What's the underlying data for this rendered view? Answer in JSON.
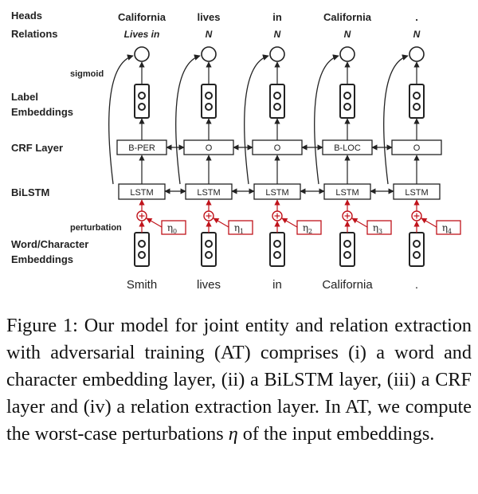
{
  "rows": {
    "heads": "Heads",
    "relations": "Relations",
    "sigmoid": "sigmoid",
    "label_embeddings": [
      "Label",
      "Embeddings"
    ],
    "crf": "CRF Layer",
    "bilstm": "BiLSTM",
    "perturbation": "perturbation",
    "word_char": [
      "Word/Character",
      "Embeddings"
    ]
  },
  "columns": [
    {
      "word": "Smith",
      "head": "California",
      "relation": "Lives in",
      "crf": "B-PER",
      "lstm": "LSTM",
      "eta": "η",
      "eta_sub": "0"
    },
    {
      "word": "lives",
      "head": "lives",
      "relation": "N",
      "crf": "O",
      "lstm": "LSTM",
      "eta": "η",
      "eta_sub": "1"
    },
    {
      "word": "in",
      "head": "in",
      "relation": "N",
      "crf": "O",
      "lstm": "LSTM",
      "eta": "η",
      "eta_sub": "2"
    },
    {
      "word": "California",
      "head": "California",
      "relation": "N",
      "crf": "B-LOC",
      "lstm": "LSTM",
      "eta": "η",
      "eta_sub": "3"
    },
    {
      "word": ".",
      "head": ".",
      "relation": "N",
      "crf": "O",
      "lstm": "LSTM",
      "eta": "η",
      "eta_sub": "4"
    }
  ],
  "caption": {
    "label": "Figure 1:",
    "text": "Our model for joint entity and relation extraction with adversarial training (AT) comprises (i) a word and character embedding layer, (ii) a BiLSTM layer, (iii) a CRF layer and (iv) a relation extraction layer. In AT, we compute the worst-case perturbations",
    "eta_symbol": "η",
    "text_end": "of the input embeddings."
  },
  "colors": {
    "ink": "#222222",
    "perturbation": "#c0131b"
  }
}
